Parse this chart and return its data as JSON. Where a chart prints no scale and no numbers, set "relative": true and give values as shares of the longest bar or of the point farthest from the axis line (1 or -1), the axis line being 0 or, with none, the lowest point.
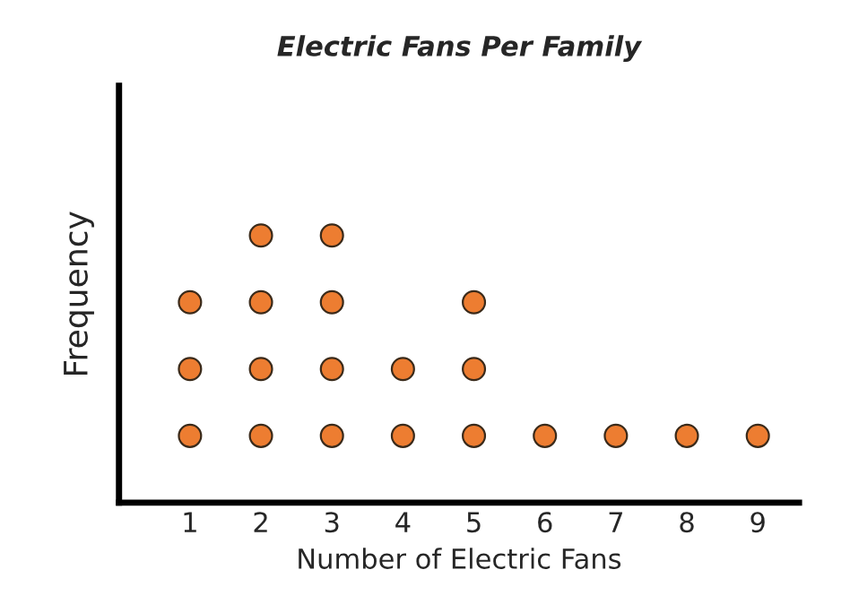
{
  "chart_data": {
    "type": "scatter",
    "title": "Electric Fans Per Family",
    "xlabel": "Number of Electric Fans",
    "ylabel": "Frequency",
    "relative": true,
    "marker": "circle",
    "grid": false,
    "legend": false,
    "categories": [
      "1",
      "2",
      "3",
      "4",
      "5",
      "6",
      "7",
      "8",
      "9"
    ],
    "series": [
      {
        "color": "#ed7d31",
        "x": [
          "1",
          "1",
          "1",
          "2",
          "2",
          "2",
          "2",
          "3",
          "3",
          "3",
          "3",
          "4",
          "4",
          "5",
          "5",
          "5",
          "6",
          "7",
          "8",
          "9"
        ],
        "values": [
          0.25,
          0.5,
          0.75,
          0.25,
          0.5,
          0.75,
          1,
          0.25,
          0.5,
          0.75,
          1,
          0.25,
          0.5,
          0.25,
          0.5,
          0.75,
          0.25,
          0.25,
          0.25,
          0.25
        ]
      }
    ]
  }
}
